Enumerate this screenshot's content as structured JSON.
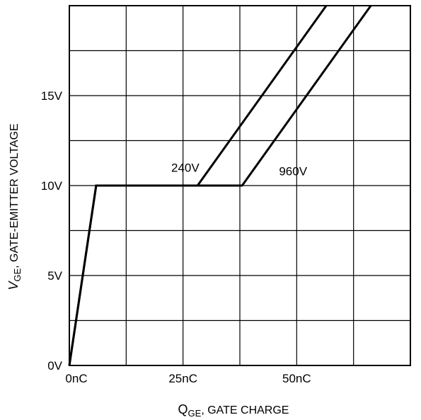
{
  "chart_data": {
    "type": "line",
    "xlabel": {
      "main": "Q",
      "sub": "GE",
      "rest": ", GATE CHARGE"
    },
    "ylabel": {
      "main": "V",
      "sub": "GE",
      "rest": ", GATE-EMITTER VOLTAGE"
    },
    "xlim": [
      0,
      75
    ],
    "ylim": [
      0,
      20
    ],
    "x_unit": "nC",
    "y_unit": "V",
    "x_ticks": [
      {
        "value": 0,
        "label": "0nC"
      },
      {
        "value": 25,
        "label": "25nC"
      },
      {
        "value": 50,
        "label": "50nC"
      }
    ],
    "y_ticks": [
      {
        "value": 0,
        "label": "0V"
      },
      {
        "value": 5,
        "label": "5V"
      },
      {
        "value": 10,
        "label": "10V"
      },
      {
        "value": 15,
        "label": "15V"
      }
    ],
    "x_grid": [
      0,
      12.5,
      25,
      37.5,
      50,
      62.5,
      75
    ],
    "y_grid": [
      0,
      2.5,
      5,
      7.5,
      10,
      12.5,
      15,
      17.5,
      20
    ],
    "grid": true,
    "series": [
      {
        "name": "240V",
        "x": [
          0,
          5.9,
          28.2,
          56.5
        ],
        "y": [
          0,
          10,
          10,
          20
        ]
      },
      {
        "name": "960V",
        "x": [
          0,
          5.9,
          38,
          66.3
        ],
        "y": [
          0,
          10,
          10,
          20
        ]
      }
    ],
    "annotations": [
      {
        "text": "240V",
        "x": 25.5,
        "y": 11,
        "series": "240V"
      },
      {
        "text": "960V",
        "x": 49.2,
        "y": 10.8,
        "series": "960V"
      }
    ],
    "colors": {
      "line": "#000000",
      "grid": "#000000",
      "background": "#ffffff"
    }
  }
}
